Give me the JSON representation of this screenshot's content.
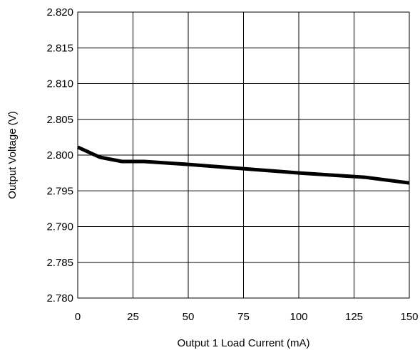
{
  "chart_data": {
    "type": "line",
    "title": "",
    "xlabel": "Output 1 Load Current (mA)",
    "ylabel": "Output Voltage (V)",
    "xlim": [
      0,
      150
    ],
    "ylim": [
      2.78,
      2.82
    ],
    "x_ticks": [
      "0",
      "25",
      "50",
      "75",
      "100",
      "125",
      "150"
    ],
    "y_ticks": [
      "2.820",
      "2.815",
      "2.810",
      "2.805",
      "2.800",
      "2.795",
      "2.790",
      "2.785",
      "2.780"
    ],
    "grid": true,
    "legend": "none",
    "series": [
      {
        "color": "#000000",
        "x": [
          0,
          10,
          20,
          30,
          50,
          75,
          100,
          130,
          150
        ],
        "y": [
          2.8011,
          2.7997,
          2.7991,
          2.7991,
          2.7987,
          2.7981,
          2.7975,
          2.7969,
          2.7961
        ]
      }
    ]
  }
}
